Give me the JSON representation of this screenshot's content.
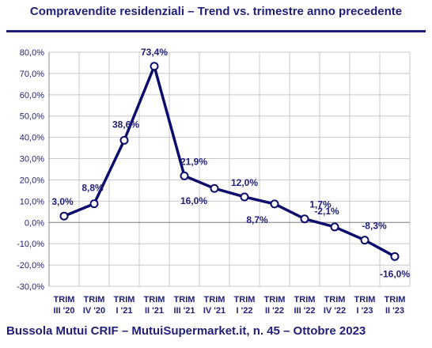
{
  "chart_data": {
    "type": "line",
    "title": "Compravendite residenziali – Trend vs. trimestre anno precedente",
    "categories": [
      [
        "TRIM",
        "III '20"
      ],
      [
        "TRIM",
        "IV '20"
      ],
      [
        "TRIM",
        "I '21"
      ],
      [
        "TRIM",
        "II '21"
      ],
      [
        "TRIM",
        "III '21"
      ],
      [
        "TRIM",
        "IV '21"
      ],
      [
        "TRIM",
        "I '22"
      ],
      [
        "TRIM",
        "II '22"
      ],
      [
        "TRIM",
        "III '22"
      ],
      [
        "TRIM",
        "IV '22"
      ],
      [
        "TRIM",
        "I '23"
      ],
      [
        "TRIM",
        "II '23"
      ]
    ],
    "values": [
      3.0,
      8.8,
      38.6,
      73.4,
      21.9,
      16.0,
      12.0,
      8.7,
      1.7,
      -2.1,
      -8.3,
      -16.0
    ],
    "data_labels": [
      "3,0%",
      "8,8%",
      "38,6%",
      "73,4%",
      "21,9%",
      "16,0%",
      "12,0%",
      "8,7%",
      "1,7%",
      "-2,1%",
      "-8,3%",
      "-16,0%"
    ],
    "ylim": [
      -30,
      80
    ],
    "yticks": [
      80,
      70,
      60,
      50,
      40,
      30,
      20,
      10,
      0,
      -10,
      -20,
      -30
    ],
    "ytick_labels": [
      "80,0%",
      "70,0%",
      "60,0%",
      "50,0%",
      "40,0%",
      "30,0%",
      "20,0%",
      "10,0%",
      "0,0%",
      "-10,0%",
      "-20,0%",
      "-30,0%"
    ],
    "grid": true,
    "line_color": "#0d0d6b",
    "text_color": "#1f1f7a"
  },
  "footer": "Bussola Mutui CRIF – MutuiSupermarket.it, n. 45 – Ottobre 2023"
}
